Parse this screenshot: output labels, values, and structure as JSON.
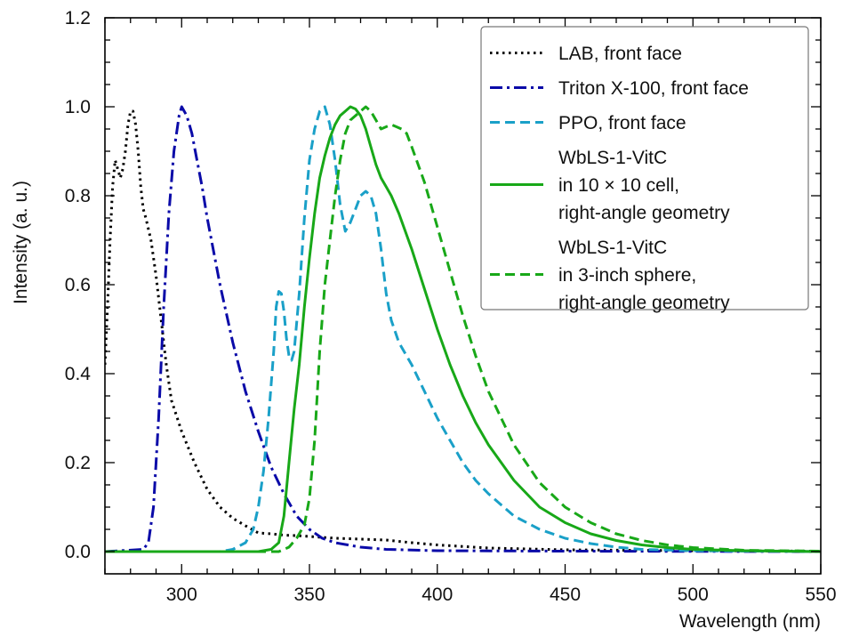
{
  "chart_data": {
    "type": "line",
    "title": "",
    "xlabel": "Wavelength (nm)",
    "ylabel": "Intensity (a. u.)",
    "xlim": [
      270,
      550
    ],
    "ylim": [
      -0.05,
      1.2
    ],
    "x_ticks": [
      "300",
      "350",
      "400",
      "450",
      "500",
      "550"
    ],
    "y_ticks": [
      "0.0",
      "0.2",
      "0.4",
      "0.6",
      "0.8",
      "1.0",
      "1.2"
    ],
    "grid": false,
    "legend_position": "top-right",
    "series": [
      {
        "name": "LAB, front face",
        "legend_lines": [
          "LAB, front face"
        ],
        "color": "#000000",
        "dash": "dotted",
        "points": [
          [
            270,
            0.42
          ],
          [
            271,
            0.55
          ],
          [
            272,
            0.7
          ],
          [
            273,
            0.82
          ],
          [
            274,
            0.88
          ],
          [
            275,
            0.86
          ],
          [
            276,
            0.84
          ],
          [
            277,
            0.86
          ],
          [
            278,
            0.9
          ],
          [
            279,
            0.96
          ],
          [
            280,
            0.99
          ],
          [
            281,
            0.99
          ],
          [
            282,
            0.96
          ],
          [
            283,
            0.9
          ],
          [
            284,
            0.82
          ],
          [
            285,
            0.77
          ],
          [
            286,
            0.75
          ],
          [
            288,
            0.7
          ],
          [
            290,
            0.62
          ],
          [
            292,
            0.52
          ],
          [
            294,
            0.42
          ],
          [
            296,
            0.34
          ],
          [
            300,
            0.27
          ],
          [
            305,
            0.2
          ],
          [
            310,
            0.14
          ],
          [
            315,
            0.1
          ],
          [
            320,
            0.075
          ],
          [
            325,
            0.058
          ],
          [
            330,
            0.042
          ],
          [
            335,
            0.04
          ],
          [
            340,
            0.037
          ],
          [
            345,
            0.036
          ],
          [
            350,
            0.034
          ],
          [
            355,
            0.032
          ],
          [
            360,
            0.03
          ],
          [
            370,
            0.028
          ],
          [
            380,
            0.026
          ],
          [
            390,
            0.02
          ],
          [
            400,
            0.015
          ],
          [
            420,
            0.008
          ],
          [
            450,
            0.004
          ],
          [
            500,
            0.002
          ],
          [
            550,
            0.001
          ]
        ]
      },
      {
        "name": "Triton X-100, front face",
        "legend_lines": [
          "Triton X-100, front face"
        ],
        "color": "#0a0aa8",
        "dash": "dashdot",
        "points": [
          [
            270,
            0.0
          ],
          [
            285,
            0.005
          ],
          [
            287,
            0.02
          ],
          [
            289,
            0.1
          ],
          [
            291,
            0.3
          ],
          [
            293,
            0.55
          ],
          [
            295,
            0.76
          ],
          [
            297,
            0.9
          ],
          [
            299,
            0.98
          ],
          [
            300,
            1.0
          ],
          [
            302,
            0.98
          ],
          [
            304,
            0.94
          ],
          [
            306,
            0.88
          ],
          [
            308,
            0.82
          ],
          [
            310,
            0.75
          ],
          [
            315,
            0.6
          ],
          [
            320,
            0.47
          ],
          [
            325,
            0.36
          ],
          [
            330,
            0.27
          ],
          [
            335,
            0.19
          ],
          [
            340,
            0.13
          ],
          [
            345,
            0.08
          ],
          [
            350,
            0.05
          ],
          [
            355,
            0.03
          ],
          [
            360,
            0.02
          ],
          [
            370,
            0.01
          ],
          [
            380,
            0.005
          ],
          [
            400,
            0.002
          ],
          [
            450,
            0.001
          ],
          [
            550,
            0.0
          ]
        ]
      },
      {
        "name": "PPO, front face",
        "legend_lines": [
          "PPO, front face"
        ],
        "color": "#1aa0c8",
        "dash": "dashed",
        "points": [
          [
            270,
            0.0
          ],
          [
            315,
            0.0
          ],
          [
            320,
            0.005
          ],
          [
            325,
            0.02
          ],
          [
            328,
            0.05
          ],
          [
            330,
            0.1
          ],
          [
            332,
            0.18
          ],
          [
            334,
            0.3
          ],
          [
            336,
            0.45
          ],
          [
            337,
            0.55
          ],
          [
            338,
            0.585
          ],
          [
            339,
            0.58
          ],
          [
            340,
            0.54
          ],
          [
            341,
            0.48
          ],
          [
            342,
            0.44
          ],
          [
            343,
            0.43
          ],
          [
            344,
            0.45
          ],
          [
            346,
            0.58
          ],
          [
            348,
            0.75
          ],
          [
            350,
            0.88
          ],
          [
            352,
            0.95
          ],
          [
            354,
            0.99
          ],
          [
            356,
            1.0
          ],
          [
            358,
            0.96
          ],
          [
            360,
            0.88
          ],
          [
            362,
            0.78
          ],
          [
            364,
            0.72
          ],
          [
            366,
            0.74
          ],
          [
            368,
            0.77
          ],
          [
            370,
            0.8
          ],
          [
            372,
            0.81
          ],
          [
            374,
            0.8
          ],
          [
            376,
            0.76
          ],
          [
            378,
            0.68
          ],
          [
            380,
            0.58
          ],
          [
            382,
            0.52
          ],
          [
            385,
            0.47
          ],
          [
            390,
            0.42
          ],
          [
            395,
            0.36
          ],
          [
            400,
            0.3
          ],
          [
            405,
            0.25
          ],
          [
            410,
            0.2
          ],
          [
            415,
            0.16
          ],
          [
            420,
            0.13
          ],
          [
            430,
            0.08
          ],
          [
            440,
            0.05
          ],
          [
            450,
            0.03
          ],
          [
            460,
            0.018
          ],
          [
            470,
            0.01
          ],
          [
            480,
            0.005
          ],
          [
            500,
            0.002
          ],
          [
            550,
            0.0
          ]
        ]
      },
      {
        "name": "WbLS-1-VitC in 10 × 10 cell, right-angle geometry",
        "legend_lines": [
          "WbLS-1-VitC",
          "in 10 × 10 cell,",
          "right-angle geometry"
        ],
        "color": "#18a818",
        "dash": "solid",
        "points": [
          [
            270,
            0.0
          ],
          [
            330,
            0.0
          ],
          [
            335,
            0.005
          ],
          [
            338,
            0.02
          ],
          [
            340,
            0.08
          ],
          [
            342,
            0.2
          ],
          [
            344,
            0.32
          ],
          [
            346,
            0.42
          ],
          [
            348,
            0.55
          ],
          [
            350,
            0.66
          ],
          [
            352,
            0.76
          ],
          [
            354,
            0.84
          ],
          [
            356,
            0.89
          ],
          [
            358,
            0.93
          ],
          [
            360,
            0.96
          ],
          [
            362,
            0.98
          ],
          [
            364,
            0.99
          ],
          [
            366,
            1.0
          ],
          [
            368,
            0.995
          ],
          [
            370,
            0.98
          ],
          [
            372,
            0.95
          ],
          [
            374,
            0.91
          ],
          [
            376,
            0.87
          ],
          [
            378,
            0.84
          ],
          [
            380,
            0.82
          ],
          [
            382,
            0.8
          ],
          [
            385,
            0.76
          ],
          [
            390,
            0.68
          ],
          [
            395,
            0.59
          ],
          [
            400,
            0.5
          ],
          [
            405,
            0.42
          ],
          [
            410,
            0.35
          ],
          [
            415,
            0.29
          ],
          [
            420,
            0.24
          ],
          [
            430,
            0.16
          ],
          [
            440,
            0.1
          ],
          [
            450,
            0.065
          ],
          [
            460,
            0.04
          ],
          [
            470,
            0.025
          ],
          [
            480,
            0.015
          ],
          [
            490,
            0.009
          ],
          [
            500,
            0.005
          ],
          [
            520,
            0.002
          ],
          [
            550,
            0.0
          ]
        ]
      },
      {
        "name": "WbLS-1-VitC in 3-inch sphere, right-angle geometry",
        "legend_lines": [
          "WbLS-1-VitC",
          "in 3-inch sphere,",
          "right-angle geometry"
        ],
        "color": "#18a818",
        "dash": "dashed",
        "points": [
          [
            270,
            0.0
          ],
          [
            338,
            0.0
          ],
          [
            342,
            0.01
          ],
          [
            345,
            0.03
          ],
          [
            348,
            0.06
          ],
          [
            350,
            0.12
          ],
          [
            352,
            0.25
          ],
          [
            354,
            0.45
          ],
          [
            356,
            0.6
          ],
          [
            358,
            0.7
          ],
          [
            360,
            0.8
          ],
          [
            362,
            0.88
          ],
          [
            364,
            0.94
          ],
          [
            366,
            0.97
          ],
          [
            368,
            0.98
          ],
          [
            370,
            0.99
          ],
          [
            372,
            1.0
          ],
          [
            374,
            0.99
          ],
          [
            376,
            0.97
          ],
          [
            378,
            0.95
          ],
          [
            380,
            0.955
          ],
          [
            382,
            0.96
          ],
          [
            384,
            0.955
          ],
          [
            386,
            0.95
          ],
          [
            388,
            0.94
          ],
          [
            390,
            0.91
          ],
          [
            395,
            0.83
          ],
          [
            400,
            0.73
          ],
          [
            405,
            0.63
          ],
          [
            410,
            0.53
          ],
          [
            415,
            0.44
          ],
          [
            420,
            0.36
          ],
          [
            430,
            0.24
          ],
          [
            440,
            0.155
          ],
          [
            450,
            0.1
          ],
          [
            460,
            0.065
          ],
          [
            470,
            0.04
          ],
          [
            480,
            0.025
          ],
          [
            490,
            0.015
          ],
          [
            500,
            0.009
          ],
          [
            520,
            0.003
          ],
          [
            550,
            0.001
          ]
        ]
      }
    ]
  }
}
